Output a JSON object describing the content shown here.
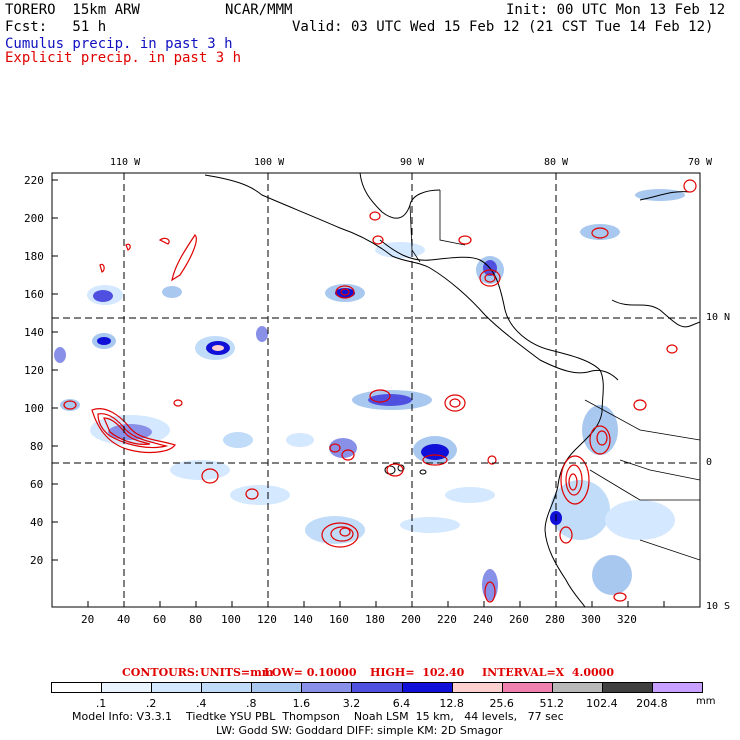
{
  "header": {
    "model": "TORERO  15km ARW",
    "org": "NCAR/MMM",
    "init": "Init: 00 UTC Mon 13 Feb 12",
    "fcst": "Fcst:   51 h",
    "valid": "Valid: 03 UTC Wed 15 Feb 12 (21 CST Tue 14 Feb 12)",
    "cumulus": "Cumulus precip. in past 3 h",
    "explicit": "Explicit precip. in past 3 h"
  },
  "axes": {
    "lon_labels": [
      "110 W",
      "100 W",
      "90 W",
      "80 W",
      "70 W"
    ],
    "lat_labels": [
      "10 N",
      "0",
      "10 S"
    ],
    "x_ticks": [
      "20",
      "40",
      "60",
      "80",
      "100",
      "120",
      "140",
      "160",
      "180",
      "200",
      "220",
      "240",
      "260",
      "280",
      "300",
      "320"
    ],
    "y_ticks": [
      "220",
      "200",
      "180",
      "160",
      "140",
      "120",
      "100",
      "80",
      "60",
      "40",
      "20"
    ]
  },
  "contours": {
    "label": "CONTOURS:",
    "units": "UNITS=mm",
    "low": "LOW= 0.10000",
    "high": "HIGH=  102.40",
    "interval": "INTERVAL=X  4.0000"
  },
  "legend": {
    "labels": [
      ".1",
      ".2",
      ".4",
      ".8",
      "1.6",
      "3.2",
      "6.4",
      "12.8",
      "25.6",
      "51.2",
      "102.4",
      "204.8"
    ],
    "unit": "mm",
    "colors": [
      "#ffffff",
      "#eaf4ff",
      "#d4e8ff",
      "#c0dcf8",
      "#a8c8f0",
      "#8890e8",
      "#5050e0",
      "#1010d8",
      "#ffd0d0",
      "#f080b0",
      "#b8b8b8",
      "#404040",
      "#c8a0ff"
    ]
  },
  "footer": {
    "line1": "Model Info: V3.3.1    Tiedtke YSU PBL  Thompson    Noah LSM  15 km,   44 levels,   77 sec",
    "line2": "LW: Godd SW: Goddard DIFF: simple KM: 2D Smagor"
  }
}
